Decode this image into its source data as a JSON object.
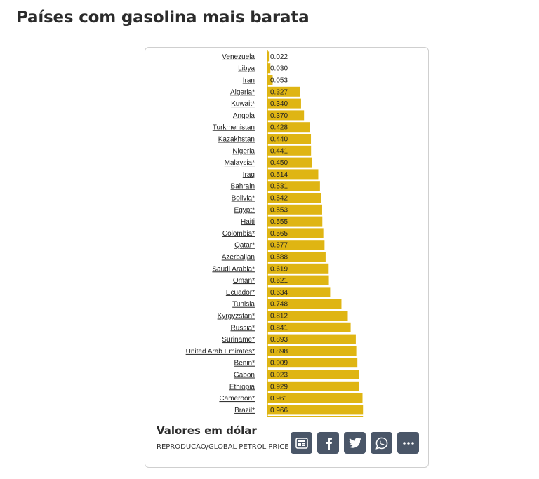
{
  "page": {
    "title": "Países com gasolina mais barata"
  },
  "caption": {
    "title": "Valores em dólar",
    "credit": "REPRODUÇÃO/GLOBAL PETROL PRICE"
  },
  "share": {
    "buttons": [
      {
        "icon": "newspaper-icon"
      },
      {
        "icon": "facebook-icon"
      },
      {
        "icon": "twitter-icon"
      },
      {
        "icon": "whatsapp-icon"
      },
      {
        "icon": "more-icon"
      }
    ]
  },
  "colors": {
    "bar": "#dfb513",
    "share_bg": "#4a5668"
  },
  "chart_data": {
    "type": "bar",
    "orientation": "horizontal",
    "categories": [
      "Venezuela",
      "Libya",
      "Iran",
      "Algeria*",
      "Kuwait*",
      "Angola",
      "Turkmenistan",
      "Kazakhstan",
      "Nigeria",
      "Malaysia*",
      "Iraq",
      "Bahrain",
      "Bolivia*",
      "Egypt*",
      "Haiti",
      "Colombia*",
      "Qatar*",
      "Azerbaijan",
      "Saudi Arabia*",
      "Oman*",
      "Ecuador*",
      "Tunisia",
      "Kyrgyzstan*",
      "Russia*",
      "Suriname*",
      "United Arab Emirates*",
      "Benin*",
      "Gabon",
      "Ethiopia",
      "Cameroon*",
      "Brazil*"
    ],
    "values": [
      0.022,
      0.03,
      0.053,
      0.327,
      0.34,
      0.37,
      0.428,
      0.44,
      0.441,
      0.45,
      0.514,
      0.531,
      0.542,
      0.553,
      0.555,
      0.565,
      0.577,
      0.588,
      0.619,
      0.621,
      0.634,
      0.748,
      0.812,
      0.841,
      0.893,
      0.898,
      0.909,
      0.923,
      0.929,
      0.961,
      0.966
    ],
    "value_labels": [
      "0.022",
      "0.030",
      "0.053",
      "0.327",
      "0.340",
      "0.370",
      "0.428",
      "0.440",
      "0.441",
      "0.450",
      "0.514",
      "0.531",
      "0.542",
      "0.553",
      "0.555",
      "0.565",
      "0.577",
      "0.588",
      "0.619",
      "0.621",
      "0.634",
      "0.748",
      "0.812",
      "0.841",
      "0.893",
      "0.898",
      "0.909",
      "0.923",
      "0.929",
      "0.961",
      "0.966"
    ],
    "title": "",
    "xlabel": "",
    "ylabel": "",
    "grid": false,
    "legend": "none"
  }
}
